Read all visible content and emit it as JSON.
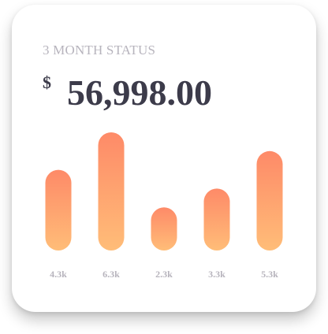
{
  "card": {
    "label": "3 MONTH STATUS",
    "currency_symbol": "$",
    "amount": "56,998.00"
  },
  "colors": {
    "bar_top": "#fe8a68",
    "bar_bottom": "#ffbd78",
    "title_text": "#3c3b4a",
    "muted_text": "#b7b4bd"
  },
  "chart_data": {
    "type": "bar",
    "categories": [
      "4.3k",
      "6.3k",
      "2.3k",
      "3.3k",
      "5.3k"
    ],
    "values": [
      4.3,
      6.3,
      2.3,
      3.3,
      5.3
    ],
    "title": "",
    "xlabel": "",
    "ylabel": "",
    "ylim": [
      0,
      6.3
    ],
    "grid": false
  }
}
